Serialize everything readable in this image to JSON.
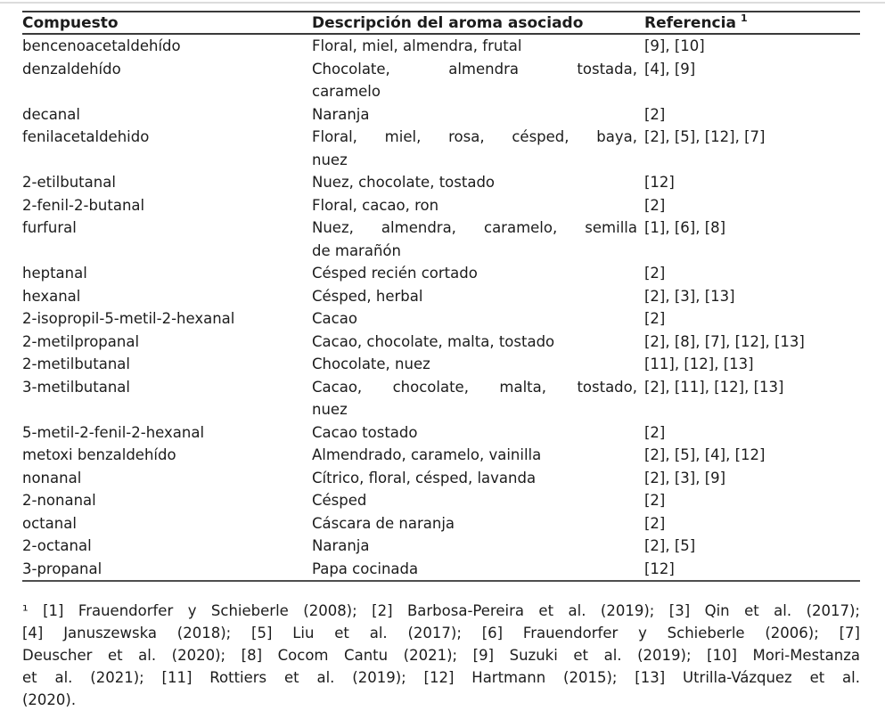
{
  "page": {
    "background_color": "#ffffff",
    "text_color": "#1c1c1c",
    "rule_color": "#3a3a3a"
  },
  "table": {
    "headers": [
      {
        "label": "Compuesto"
      },
      {
        "label": "Descripción del aroma asociado"
      },
      {
        "label": "Referencia",
        "superscript": "1"
      }
    ],
    "rows": [
      {
        "compound": "bencenoacetaldehído",
        "aroma_lines": [
          "Floral, miel, almendra, frutal"
        ],
        "references": "[9], [10]"
      },
      {
        "compound": "denzaldehído",
        "aroma_lines": [
          "Chocolate, almendra tostada,",
          "caramelo"
        ],
        "references": "[4], [9]"
      },
      {
        "compound": "decanal",
        "aroma_lines": [
          "Naranja"
        ],
        "references": "[2]"
      },
      {
        "compound": "fenilacetaldehido",
        "aroma_lines": [
          "Floral, miel, rosa, césped, baya,",
          "nuez"
        ],
        "references": "[2], [5], [12], [7]"
      },
      {
        "compound": "2-etilbutanal",
        "aroma_lines": [
          "Nuez, chocolate, tostado"
        ],
        "references": "[12]"
      },
      {
        "compound": "2-fenil-2-butanal",
        "aroma_lines": [
          "Floral, cacao, ron"
        ],
        "references": "[2]"
      },
      {
        "compound": "furfural",
        "aroma_lines": [
          "Nuez, almendra, caramelo, semilla",
          "de marañón"
        ],
        "references": "[1], [6], [8]"
      },
      {
        "compound": "heptanal",
        "aroma_lines": [
          "Césped recién cortado"
        ],
        "references": "[2]"
      },
      {
        "compound": "hexanal",
        "aroma_lines": [
          "Césped, herbal"
        ],
        "references": "[2], [3], [13]"
      },
      {
        "compound": "2-isopropil-5-metil-2-hexanal",
        "aroma_lines": [
          "Cacao"
        ],
        "references": "[2]"
      },
      {
        "compound": "2-metilpropanal",
        "aroma_lines": [
          "Cacao, chocolate, malta, tostado"
        ],
        "references": "[2], [8], [7], [12], [13]"
      },
      {
        "compound": "2-metilbutanal",
        "aroma_lines": [
          "Chocolate, nuez"
        ],
        "references": "[11], [12], [13]"
      },
      {
        "compound": "3-metilbutanal",
        "aroma_lines": [
          "Cacao, chocolate, malta, tostado,",
          "nuez"
        ],
        "references": "[2], [11], [12], [13]"
      },
      {
        "compound": "5-metil-2-fenil-2-hexanal",
        "aroma_lines": [
          "Cacao tostado"
        ],
        "references": "[2]"
      },
      {
        "compound": "metoxi benzaldehído",
        "aroma_lines": [
          "Almendrado, caramelo, vainilla"
        ],
        "references": "[2], [5], [4], [12]"
      },
      {
        "compound": "nonanal",
        "aroma_lines": [
          "Cítrico, floral, césped, lavanda"
        ],
        "references": "[2], [3], [9]"
      },
      {
        "compound": "2-nonanal",
        "aroma_lines": [
          "Césped"
        ],
        "references": "[2]"
      },
      {
        "compound": "octanal",
        "aroma_lines": [
          "Cáscara de naranja"
        ],
        "references": "[2]"
      },
      {
        "compound": "2-octanal",
        "aroma_lines": [
          "Naranja"
        ],
        "references": "[2], [5]"
      },
      {
        "compound": "3-propanal",
        "aroma_lines": [
          "Papa cocinada"
        ],
        "references": "[12]"
      }
    ]
  },
  "footnote": {
    "marker": "1",
    "lines": [
      "¹ [1] Frauendorfer y Schieberle (2008); [2] Barbosa-Pereira et al. (2019); [3] Qin et al. (2017);",
      "[4] Januszewska (2018); [5] Liu et al. (2017); [6] Frauendorfer y Schieberle (2006); [7]",
      "Deuscher et al. (2020); [8] Cocom Cantu (2021); [9] Suzuki et al. (2019); [10] Mori-Mestanza",
      "et al. (2021); [11] Rottiers et al. (2019); [12] Hartmann (2015); [13] Utrilla-Vázquez et al.",
      "(2020)."
    ]
  }
}
